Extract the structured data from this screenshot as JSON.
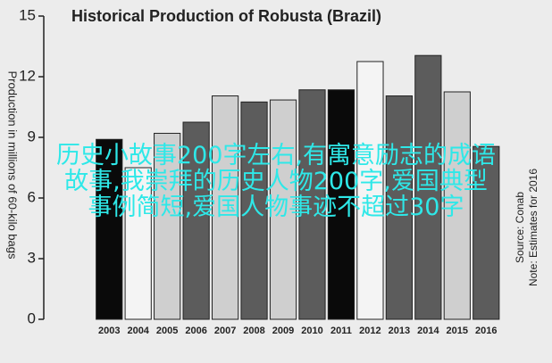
{
  "chart_data": {
    "type": "bar",
    "title": "Historical Production of Robusta (Brazil)",
    "y_label": "Production in millions of 60-kilo bags",
    "notes": [
      "Source: Conab",
      "Note: Estimates for 2016"
    ],
    "categories": [
      "2003",
      "2004",
      "2005",
      "2006",
      "2007",
      "2008",
      "2009",
      "2010",
      "2011",
      "2012",
      "2013",
      "2014",
      "2015",
      "2016"
    ],
    "values": [
      8.9,
      7.5,
      9.2,
      9.75,
      11.05,
      10.75,
      10.85,
      11.35,
      11.35,
      12.75,
      11.05,
      13.05,
      11.25,
      8.55
    ],
    "colors": [
      "#0a0a0a",
      "#f4f4f4",
      "#cfcfcf",
      "#5c5c5c",
      "#cfcfcf",
      "#5c5c5c",
      "#cfcfcf",
      "#5c5c5c",
      "#0a0a0a",
      "#f4f4f4",
      "#5c5c5c",
      "#5c5c5c",
      "#cfcfcf",
      "#5c5c5c"
    ],
    "ylim": [
      0,
      15
    ],
    "yticks": [
      0,
      3,
      6,
      9,
      12,
      15
    ],
    "grid": false
  },
  "overlay_text": [
    "历史小故事200字左右,有寓意励志的成语",
    "故事,我崇拜的历史人物200字,爱国典型",
    "事例简短,爱国人物事迹不超过30字"
  ]
}
